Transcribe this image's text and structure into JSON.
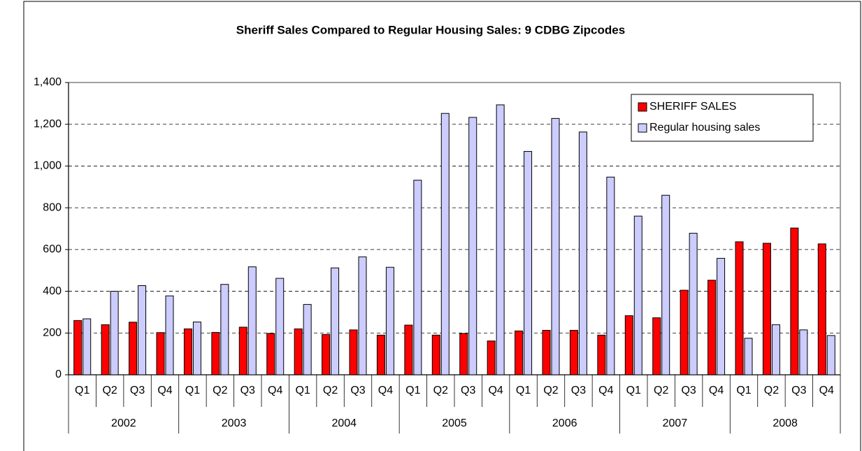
{
  "chart_data": {
    "type": "bar",
    "title": "Sheriff Sales Compared to Regular Housing Sales: 9 CDBG Zipcodes",
    "categories": [
      "Q1",
      "Q2",
      "Q3",
      "Q4",
      "Q1",
      "Q2",
      "Q3",
      "Q4",
      "Q1",
      "Q2",
      "Q3",
      "Q4",
      "Q1",
      "Q2",
      "Q3",
      "Q4",
      "Q1",
      "Q2",
      "Q3",
      "Q4",
      "Q1",
      "Q2",
      "Q3",
      "Q4",
      "Q1",
      "Q2",
      "Q3",
      "Q4"
    ],
    "years": [
      "2002",
      "2003",
      "2004",
      "2005",
      "2006",
      "2007",
      "2008"
    ],
    "series": [
      {
        "name": "SHERIFF SALES",
        "color": "#ff0000",
        "values": [
          260,
          240,
          252,
          202,
          220,
          203,
          228,
          198,
          220,
          193,
          215,
          190,
          238,
          190,
          198,
          162,
          210,
          213,
          213,
          190,
          283,
          273,
          405,
          453,
          637,
          630,
          703,
          627
        ]
      },
      {
        "name": "Regular housing sales",
        "color": "#ccccff",
        "values": [
          268,
          400,
          427,
          378,
          253,
          433,
          517,
          462,
          337,
          512,
          565,
          515,
          932,
          1252,
          1233,
          1293,
          1070,
          1228,
          1163,
          947,
          760,
          860,
          678,
          558,
          175,
          240,
          215,
          188
        ]
      }
    ],
    "ylim": [
      0,
      1400
    ],
    "yticks": [
      0,
      200,
      400,
      600,
      800,
      {
        "value": 1000,
        "label": "1,000"
      },
      {
        "value": 1200,
        "label": "1,200"
      },
      {
        "value": 1400,
        "label": "1,400"
      }
    ],
    "grid": true,
    "legend": "top-right"
  }
}
